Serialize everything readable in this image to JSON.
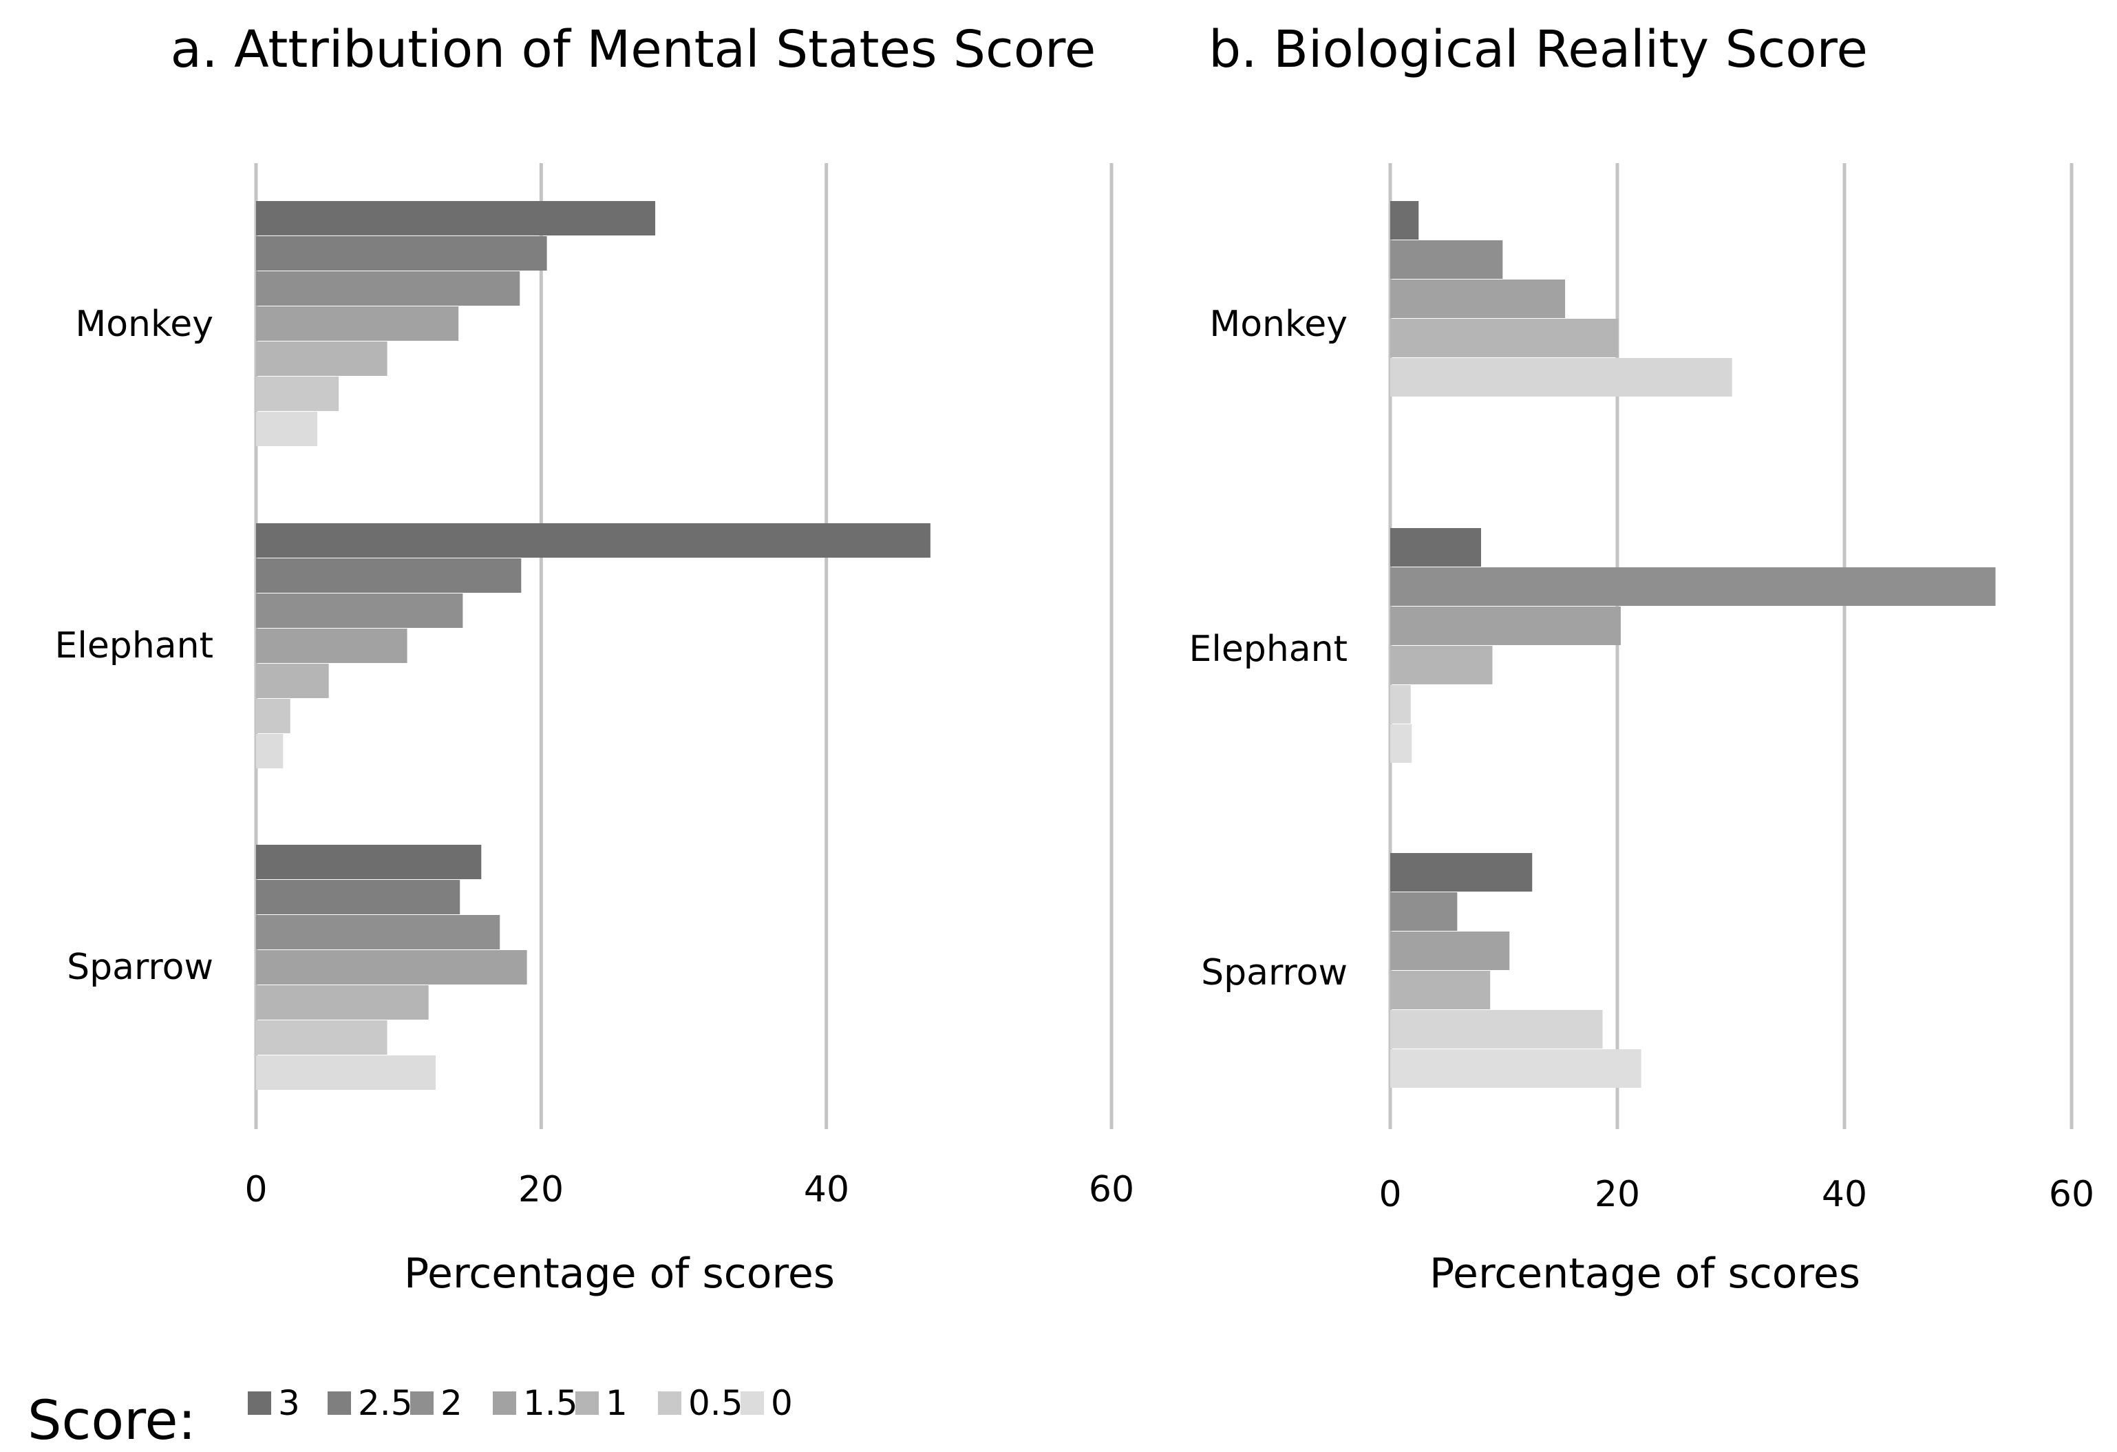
{
  "chart_data": [
    {
      "type": "bar",
      "orientation": "horizontal",
      "title": "a. Attribution of Mental States Score",
      "xlabel": "Percentage of scores",
      "ylabel": "",
      "xlim": [
        0,
        60
      ],
      "xticks": [
        "0",
        "20",
        "40",
        "60"
      ],
      "categories": [
        "Monkey",
        "Elephant",
        "Sparrow"
      ],
      "grid": true,
      "series": [
        {
          "name": "3",
          "values": [
            28.0,
            47.3,
            15.8
          ]
        },
        {
          "name": "2.5",
          "values": [
            20.4,
            18.6,
            14.3
          ]
        },
        {
          "name": "2",
          "values": [
            18.5,
            14.5,
            17.1
          ]
        },
        {
          "name": "1.5",
          "values": [
            14.2,
            10.6,
            19.0
          ]
        },
        {
          "name": "1",
          "values": [
            9.2,
            5.1,
            12.1
          ]
        },
        {
          "name": "0.5",
          "values": [
            5.8,
            2.4,
            9.2
          ]
        },
        {
          "name": "0",
          "values": [
            4.3,
            1.9,
            12.6
          ]
        }
      ]
    },
    {
      "type": "bar",
      "orientation": "horizontal",
      "title": "b. Biological Reality Score",
      "xlabel": "Percentage of scores",
      "ylabel": "",
      "xlim": [
        0,
        60
      ],
      "xticks": [
        "0",
        "20",
        "40",
        "60"
      ],
      "categories": [
        "Monkey",
        "Elephant",
        "Sparrow"
      ],
      "grid": true,
      "series": [
        {
          "name": "3",
          "values": [
            2.5,
            8.0,
            12.5
          ]
        },
        {
          "name": "2.5",
          "values": [
            9.9,
            53.3,
            5.9
          ]
        },
        {
          "name": "2",
          "values": [
            15.4,
            20.3,
            10.5
          ]
        },
        {
          "name": "1.5",
          "values": [
            20.1,
            9.0,
            8.8
          ]
        },
        {
          "name": "1",
          "values": [
            30.1,
            1.8,
            18.7
          ]
        },
        {
          "name": "0.5",
          "values": [
            0,
            1.9,
            22.1
          ]
        },
        {
          "name": "0",
          "values": [
            0,
            0,
            0
          ]
        }
      ]
    }
  ],
  "legend": {
    "title": "Score:",
    "items": [
      {
        "label": "3",
        "color": "#6e6e6e"
      },
      {
        "label": "2.5",
        "color": "#7f7f7f"
      },
      {
        "label": "2",
        "color": "#8f8f8f"
      },
      {
        "label": "1.5",
        "color": "#a2a2a2"
      },
      {
        "label": "1",
        "color": "#b5b5b5"
      },
      {
        "label": "0.5",
        "color": "#c9c9c9"
      },
      {
        "label": "0",
        "color": "#dcdcdc"
      }
    ]
  },
  "colors": {
    "grid": "#c4c4c4",
    "panel_b_series": [
      "#6e6e6e",
      "#8f8f8f",
      "#a2a2a2",
      "#b5b5b5",
      "#d6d6d6",
      "#dedede",
      "#e6e6e6"
    ]
  }
}
